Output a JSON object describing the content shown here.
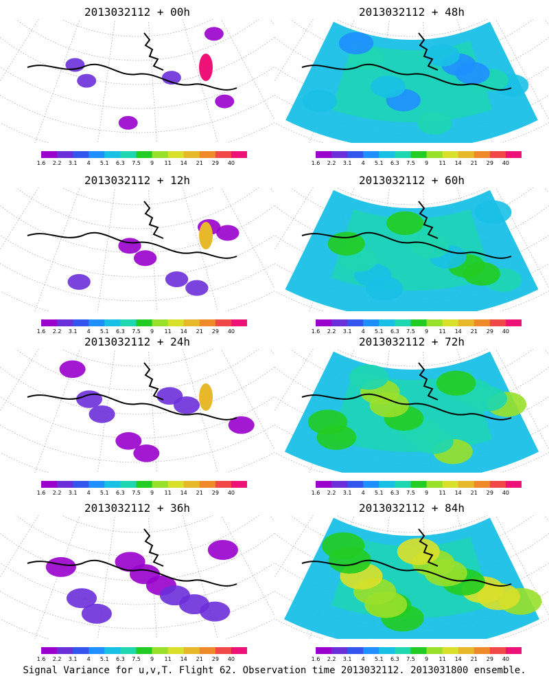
{
  "caption": "Signal Variance for u,v,T. Flight 62. Observation time 2013032112. 2013031800 ensemble.",
  "colorbar": {
    "ticks": [
      "1.6",
      "2.2",
      "3.1",
      "4",
      "5.1",
      "6.3",
      "7.5",
      "9",
      "11",
      "14",
      "21",
      "29",
      "40"
    ],
    "colors": [
      "#9900cc",
      "#6b2fd9",
      "#3355ee",
      "#1f8fff",
      "#19c0e6",
      "#1ed6b0",
      "#22cc22",
      "#99e02a",
      "#d9e02a",
      "#e6b82a",
      "#ef8a2a",
      "#f04848",
      "#ee1177"
    ]
  },
  "panels": [
    {
      "title": "2013032112 + 00h",
      "level": 0.0
    },
    {
      "title": "2013032112 + 48h",
      "level": 0.62
    },
    {
      "title": "2013032112 + 12h",
      "level": 0.15
    },
    {
      "title": "2013032112 + 60h",
      "level": 0.72
    },
    {
      "title": "2013032112 + 24h",
      "level": 0.28
    },
    {
      "title": "2013032112 + 72h",
      "level": 0.82
    },
    {
      "title": "2013032112 + 36h",
      "level": 0.45
    },
    {
      "title": "2013032112 + 84h",
      "level": 0.95
    }
  ]
}
